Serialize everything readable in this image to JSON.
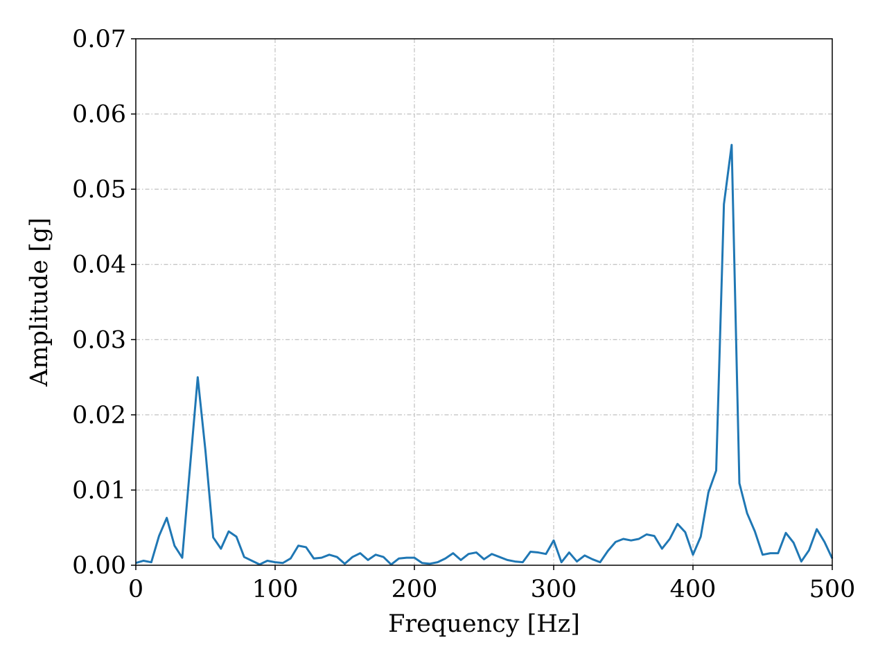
{
  "chart_data": {
    "type": "line",
    "title": "",
    "xlabel": "Frequency [Hz]",
    "ylabel": "Amplitude [g]",
    "xlim": [
      0,
      500
    ],
    "ylim": [
      0,
      0.07
    ],
    "xticks": [
      0,
      100,
      200,
      300,
      400,
      500
    ],
    "xtick_labels": [
      "0",
      "100",
      "200",
      "300",
      "400",
      "500"
    ],
    "yticks": [
      0,
      0.01,
      0.02,
      0.03,
      0.04,
      0.05,
      0.06,
      0.07
    ],
    "ytick_labels": [
      "0.00",
      "0.01",
      "0.02",
      "0.03",
      "0.04",
      "0.05",
      "0.06",
      "0.07"
    ],
    "grid": true,
    "legend": "none",
    "series": [
      {
        "color": "#1f77b4",
        "x": [
          0,
          5.56,
          11.11,
          16.67,
          22.22,
          27.78,
          33.33,
          38.89,
          44.44,
          50,
          55.56,
          61.11,
          66.67,
          72.22,
          77.78,
          83.33,
          88.89,
          94.44,
          100,
          105.56,
          111.11,
          116.67,
          122.22,
          127.78,
          133.33,
          138.89,
          144.44,
          150,
          155.56,
          161.11,
          166.67,
          172.22,
          177.78,
          183.33,
          188.89,
          194.44,
          200,
          205.56,
          211.11,
          216.67,
          222.22,
          227.78,
          233.33,
          238.89,
          244.44,
          250,
          255.56,
          261.11,
          266.67,
          272.22,
          277.78,
          283.33,
          288.89,
          294.44,
          300,
          305.56,
          311.11,
          316.67,
          322.22,
          327.78,
          333.33,
          338.89,
          344.44,
          350,
          355.56,
          361.11,
          366.67,
          372.22,
          377.78,
          383.33,
          388.89,
          394.44,
          400,
          405.56,
          411.11,
          416.67,
          422.22,
          427.78,
          433.33,
          438.89,
          444.44,
          450,
          455.56,
          461.11,
          466.67,
          472.22,
          477.78,
          483.33,
          488.89,
          494.44,
          500
        ],
        "y": [
          0.0003,
          0.0006,
          0.0004,
          0.0039,
          0.0063,
          0.0026,
          0.001,
          0.013,
          0.025,
          0.0152,
          0.0037,
          0.0022,
          0.0045,
          0.0038,
          0.0011,
          0.0006,
          0.0001,
          0.0006,
          0.0004,
          0.0003,
          0.0009,
          0.0026,
          0.0024,
          0.0009,
          0.001,
          0.0014,
          0.0011,
          0.0002,
          0.0011,
          0.0016,
          0.0007,
          0.0014,
          0.0011,
          0.0001,
          0.0009,
          0.001,
          0.001,
          0.0003,
          0.0002,
          0.0004,
          0.0009,
          0.0016,
          0.0007,
          0.0015,
          0.0017,
          0.0008,
          0.0015,
          0.0011,
          0.0007,
          0.0005,
          0.0004,
          0.0018,
          0.0017,
          0.0015,
          0.0033,
          0.0004,
          0.0017,
          0.0005,
          0.0013,
          0.0008,
          0.0004,
          0.0019,
          0.0031,
          0.0035,
          0.0033,
          0.0035,
          0.0041,
          0.0039,
          0.0022,
          0.0035,
          0.0055,
          0.0044,
          0.0014,
          0.0038,
          0.0097,
          0.0126,
          0.048,
          0.0559,
          0.0109,
          0.0069,
          0.0045,
          0.0014,
          0.0016,
          0.0016,
          0.0043,
          0.003,
          0.0005,
          0.002,
          0.0048,
          0.0031,
          0.0009
        ]
      }
    ]
  }
}
